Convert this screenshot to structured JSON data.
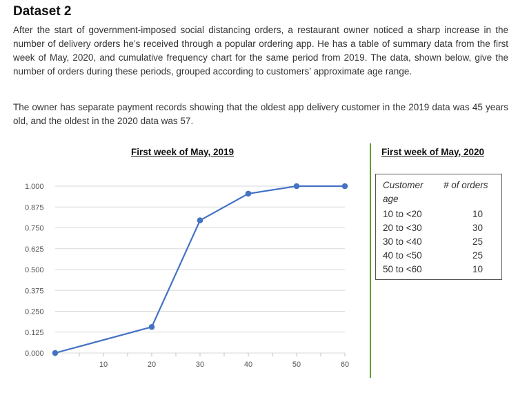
{
  "heading": "Dataset 2",
  "paragraph1": "After the start of government-imposed social distancing orders, a restaurant owner noticed a sharp increase in the number of delivery orders he’s received through a popular ordering app. He has a table of summary data from the first week of May, 2020, and cumulative frequency chart for the same period from 2019. The data, shown below, give the number of orders during these periods, grouped according to customers’ approximate age range.",
  "paragraph2": "The owner has separate payment records showing that the oldest app delivery customer in the 2019 data was 45 years old, and the oldest in the 2020 data was 57.",
  "chart_data": {
    "type": "line",
    "title": "First week of May, 2019",
    "xlabel": "",
    "ylabel": "",
    "x": [
      0,
      20,
      30,
      40,
      50,
      60
    ],
    "y": [
      0.0,
      0.156,
      0.795,
      0.955,
      1.0,
      1.0
    ],
    "xticks": [
      10,
      20,
      30,
      40,
      50,
      60
    ],
    "yticks": [
      "0.000",
      "0.125",
      "0.250",
      "0.375",
      "0.500",
      "0.625",
      "0.750",
      "0.875",
      "1.000"
    ],
    "xlim": [
      0,
      60
    ],
    "ylim": [
      0,
      1
    ],
    "grid": true,
    "line_color": "#4472c4"
  },
  "table": {
    "title": "First week of May, 2020",
    "header_age": "Customer age",
    "header_orders": "# of orders",
    "rows": [
      {
        "age": "10 to <20",
        "orders": "10"
      },
      {
        "age": "20 to <30",
        "orders": "30"
      },
      {
        "age": "30 to <40",
        "orders": "25"
      },
      {
        "age": "40 to <50",
        "orders": "25"
      },
      {
        "age": "50 to <60",
        "orders": "10"
      }
    ]
  },
  "colors": {
    "divider": "#5aa02c",
    "series": "#4472c4"
  }
}
